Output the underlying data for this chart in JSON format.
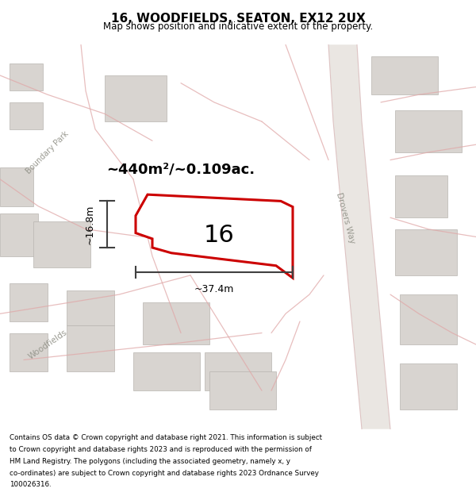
{
  "title": "16, WOODFIELDS, SEATON, EX12 2UX",
  "subtitle": "Map shows position and indicative extent of the property.",
  "footer_lines": [
    "Contains OS data © Crown copyright and database right 2021. This information is subject",
    "to Crown copyright and database rights 2023 and is reproduced with the permission of",
    "HM Land Registry. The polygons (including the associated geometry, namely x, y",
    "co-ordinates) are subject to Crown copyright and database rights 2023 Ordnance Survey",
    "100026316."
  ],
  "area_label": "~440m²/~0.109ac.",
  "width_label": "~37.4m",
  "height_label": "~16.8m",
  "plot_number": "16",
  "map_bg": "#f5f3f0",
  "plot_outline": "#cc0000",
  "road_color": "#e0a8a8",
  "building_fc": "#d8d4d0",
  "building_ec": "#b8b4b0",
  "arrow_color": "#404040",
  "label_street_color": "#999990",
  "drovers_way_label": "Drovers Way",
  "boundary_park_label": "Boundary Park",
  "woodfields_label": "Woodfields"
}
